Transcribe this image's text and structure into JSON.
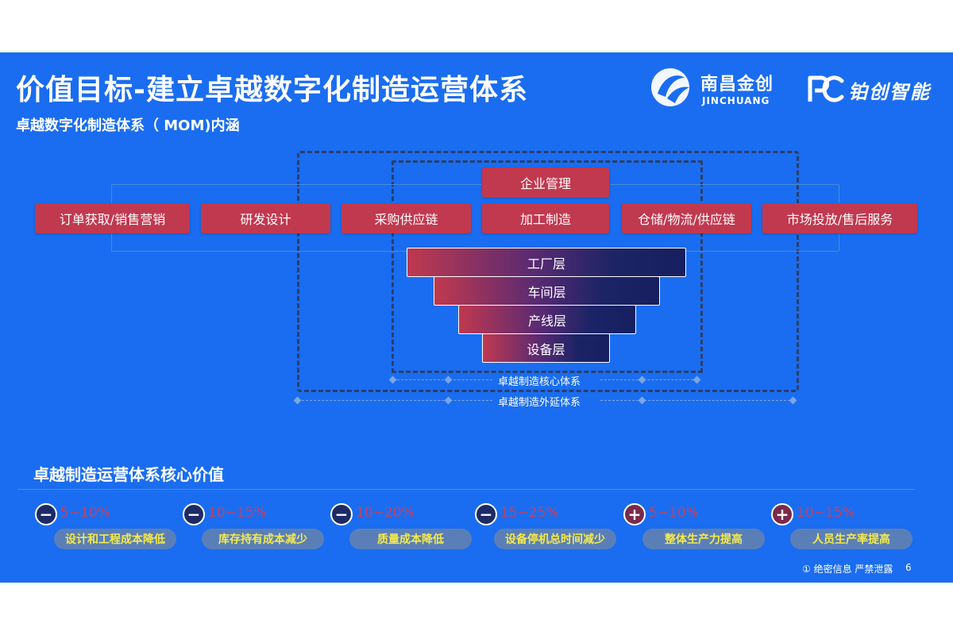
{
  "title": "价值目标-建立卓越数字化制造运营体系",
  "subtitle": "卓越数字化制造体系（ MOM)内涵",
  "logos": {
    "jinchuang": {
      "name": "南昌金创",
      "en": "JINCHUANG"
    },
    "bochuang": {
      "name": "铂创智能"
    }
  },
  "process": {
    "top": "企业管理",
    "row": [
      "订单获取/销售营销",
      "研发设计",
      "采购供应链",
      "加工制造",
      "仓储/物流/供应链",
      "市场投放/售后服务"
    ]
  },
  "layers": [
    "工厂层",
    "车间层",
    "产线层",
    "设备层"
  ],
  "system_labels": {
    "core": "卓越制造核心体系",
    "extended": "卓越制造外延体系"
  },
  "values": {
    "heading": "卓越制造运营体系核心价值",
    "items": [
      {
        "sign": "minus",
        "range": "5~10%",
        "label": "设计和工程成本降低"
      },
      {
        "sign": "minus",
        "range": "10~15%",
        "label": "库存持有成本减少"
      },
      {
        "sign": "minus",
        "range": "10~20%",
        "label": "质量成本降低"
      },
      {
        "sign": "minus",
        "range": "15~25%",
        "label": "设备停机总时间减少"
      },
      {
        "sign": "plus",
        "range": "5~10%",
        "label": "整体生产力提高"
      },
      {
        "sign": "plus",
        "range": "10~15%",
        "label": "人员生产率提高"
      }
    ]
  },
  "footer": {
    "confidential": "① 绝密信息 严禁泄露",
    "page": "6"
  },
  "colors": {
    "background": "#1a6df0",
    "process_box": "#c0394f",
    "frame": "#2c3e6a",
    "pill_text": "#f5e94a",
    "percent_text": "#c44060"
  }
}
